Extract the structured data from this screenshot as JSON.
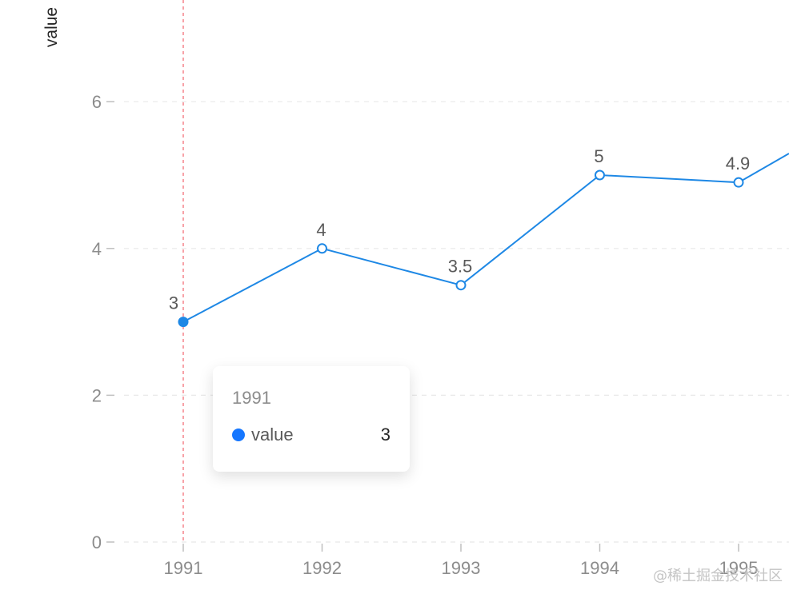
{
  "chart_data": {
    "type": "line",
    "ylabel": "value",
    "categories": [
      "1991",
      "1992",
      "1993",
      "1994",
      "1995"
    ],
    "series": [
      {
        "name": "value",
        "values": [
          3,
          4,
          3.5,
          5,
          4.9
        ],
        "color": "#1e88e5"
      }
    ],
    "yticks": [
      "0",
      "2",
      "4",
      "6"
    ],
    "ylim": [
      0,
      7.2
    ],
    "grid": "dashed horizontal",
    "continuation_note": "line continues rising past right edge toward next point",
    "crosshair_color": "#f5707a"
  },
  "tooltip": {
    "title": "1991",
    "series_name": "value",
    "series_value": "3",
    "marker_color": "#1677ff"
  },
  "watermark": "@稀土掘金技术社区"
}
